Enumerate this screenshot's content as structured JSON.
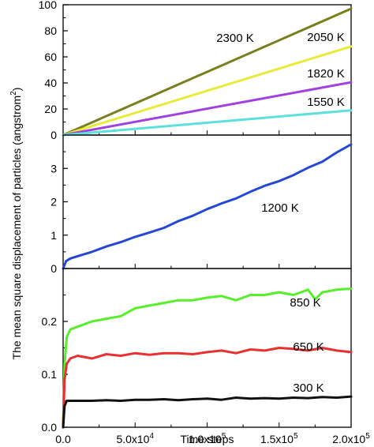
{
  "chart_data": [
    {
      "type": "line",
      "panel": "top",
      "xlim": [
        0,
        200000
      ],
      "ylim": [
        0,
        100
      ],
      "yticks": [
        0,
        20,
        40,
        60,
        80,
        100
      ],
      "ytick_labels": [
        "0",
        "20",
        "40",
        "60",
        "80",
        "100"
      ],
      "series": [
        {
          "name": "2300 K",
          "color": "#7a7f1e",
          "x": [
            0,
            200000
          ],
          "y": [
            0,
            97
          ]
        },
        {
          "name": "2050 K",
          "color": "#eaea3a",
          "x": [
            0,
            200000
          ],
          "y": [
            0,
            68
          ]
        },
        {
          "name": "1820 K",
          "color": "#a040e0",
          "x": [
            0,
            200000
          ],
          "y": [
            0,
            40.5
          ]
        },
        {
          "name": "1550 K",
          "color": "#5ce0dc",
          "x": [
            0,
            200000
          ],
          "y": [
            0,
            19
          ]
        }
      ]
    },
    {
      "type": "line",
      "panel": "middle",
      "xlim": [
        0,
        200000
      ],
      "ylim": [
        0,
        4
      ],
      "yticks": [
        0,
        1,
        2,
        3
      ],
      "ytick_labels": [
        "0",
        "1",
        "2",
        "3"
      ],
      "series": [
        {
          "name": "1200 K",
          "color": "#2348d8",
          "x": [
            0,
            2000,
            5000,
            10000,
            20000,
            30000,
            40000,
            50000,
            60000,
            70000,
            80000,
            90000,
            100000,
            110000,
            120000,
            130000,
            140000,
            150000,
            160000,
            170000,
            180000,
            190000,
            200000
          ],
          "y": [
            0.0,
            0.22,
            0.3,
            0.37,
            0.5,
            0.66,
            0.79,
            0.95,
            1.08,
            1.22,
            1.42,
            1.58,
            1.78,
            1.95,
            2.1,
            2.3,
            2.48,
            2.62,
            2.8,
            3.02,
            3.2,
            3.48,
            3.72
          ]
        }
      ]
    },
    {
      "type": "line",
      "panel": "bottom",
      "xlim": [
        0,
        200000
      ],
      "ylim": [
        0,
        0.3
      ],
      "yticks": [
        0.0,
        0.1,
        0.2
      ],
      "ytick_labels": [
        "0.0",
        "0.1",
        "0.2"
      ],
      "xticks": [
        0,
        50000,
        100000,
        150000,
        200000
      ],
      "xtick_labels": [
        "0.0",
        "5.0x10",
        "1.0x10",
        "1.5x10",
        "2.0x10"
      ],
      "xtick_exponents": [
        "",
        "4",
        "5",
        "5",
        "5"
      ],
      "xlabel": "Time steps",
      "series": [
        {
          "name": "850 K",
          "color": "#57ee2a",
          "x": [
            0,
            1000,
            2500,
            5000,
            10000,
            20000,
            30000,
            40000,
            50000,
            60000,
            70000,
            80000,
            90000,
            100000,
            110000,
            120000,
            130000,
            140000,
            150000,
            160000,
            170000,
            175000,
            180000,
            190000,
            200000
          ],
          "y": [
            0.0,
            0.12,
            0.17,
            0.185,
            0.19,
            0.2,
            0.205,
            0.21,
            0.225,
            0.23,
            0.235,
            0.24,
            0.24,
            0.245,
            0.248,
            0.24,
            0.25,
            0.25,
            0.255,
            0.25,
            0.26,
            0.242,
            0.255,
            0.26,
            0.262
          ]
        },
        {
          "name": "650 K",
          "color": "#e83030",
          "x": [
            0,
            1000,
            2500,
            5000,
            10000,
            20000,
            30000,
            40000,
            50000,
            60000,
            70000,
            80000,
            90000,
            100000,
            110000,
            120000,
            130000,
            140000,
            150000,
            160000,
            170000,
            180000,
            190000,
            200000
          ],
          "y": [
            0.0,
            0.09,
            0.12,
            0.13,
            0.135,
            0.13,
            0.138,
            0.135,
            0.14,
            0.137,
            0.14,
            0.14,
            0.138,
            0.142,
            0.145,
            0.14,
            0.147,
            0.145,
            0.15,
            0.148,
            0.145,
            0.15,
            0.145,
            0.142
          ]
        },
        {
          "name": "300 K",
          "color": "#111111",
          "x": [
            0,
            1000,
            2500,
            5000,
            10000,
            20000,
            30000,
            40000,
            50000,
            60000,
            70000,
            80000,
            90000,
            100000,
            110000,
            120000,
            130000,
            140000,
            150000,
            160000,
            170000,
            180000,
            190000,
            200000
          ],
          "y": [
            0.0,
            0.04,
            0.05,
            0.05,
            0.05,
            0.05,
            0.051,
            0.05,
            0.052,
            0.052,
            0.053,
            0.051,
            0.053,
            0.054,
            0.052,
            0.056,
            0.054,
            0.055,
            0.054,
            0.056,
            0.055,
            0.057,
            0.056,
            0.058
          ]
        }
      ]
    }
  ],
  "ylabel": "The mean square displacement of particles (angstrom",
  "ylabel_superscript": "2",
  "ylabel_suffix": ")"
}
